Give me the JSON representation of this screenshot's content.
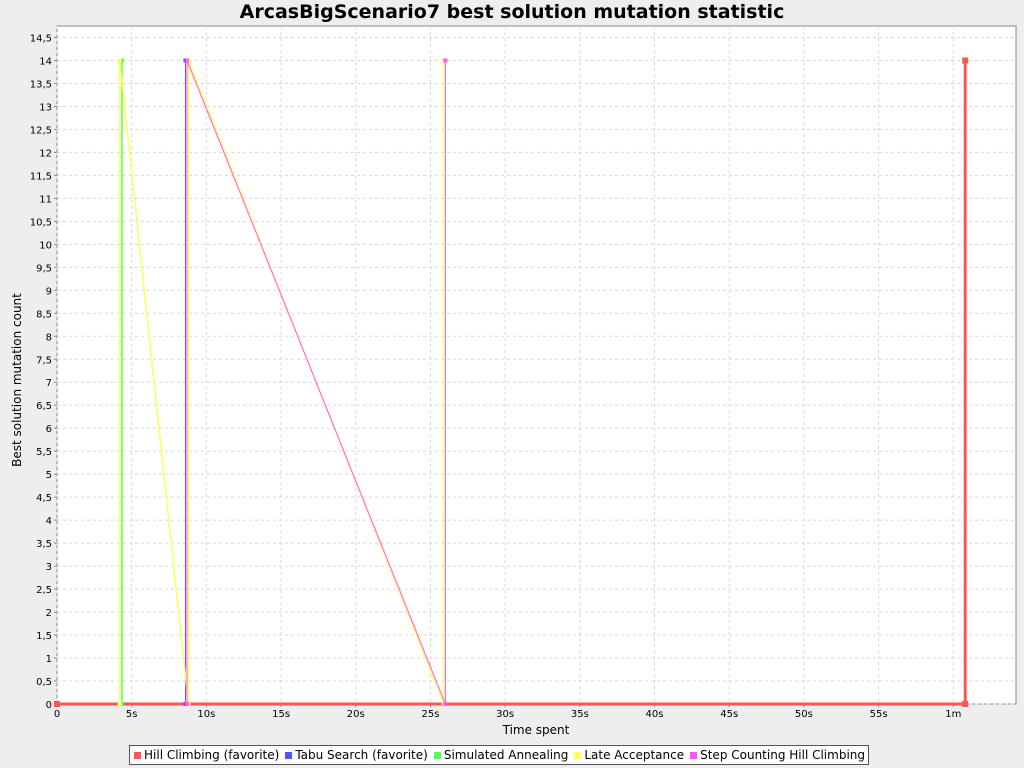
{
  "chart_data": {
    "type": "line",
    "title": "ArcasBigScenario7 best solution mutation statistic",
    "xlabel": "Time spent",
    "ylabel": "Best solution mutation count",
    "xlim": [
      0,
      64.2
    ],
    "ylim": [
      0,
      14.75
    ],
    "x_ticks": [
      {
        "value": 0,
        "label": "0"
      },
      {
        "value": 5,
        "label": "5s"
      },
      {
        "value": 10,
        "label": "10s"
      },
      {
        "value": 15,
        "label": "15s"
      },
      {
        "value": 20,
        "label": "20s"
      },
      {
        "value": 25,
        "label": "25s"
      },
      {
        "value": 30,
        "label": "30s"
      },
      {
        "value": 35,
        "label": "35s"
      },
      {
        "value": 40,
        "label": "40s"
      },
      {
        "value": 45,
        "label": "45s"
      },
      {
        "value": 50,
        "label": "50s"
      },
      {
        "value": 55,
        "label": "55s"
      },
      {
        "value": 60,
        "label": "1m"
      }
    ],
    "y_ticks": [
      {
        "value": 0,
        "label": "0"
      },
      {
        "value": 0.5,
        "label": "0,5"
      },
      {
        "value": 1,
        "label": "1"
      },
      {
        "value": 1.5,
        "label": "1,5"
      },
      {
        "value": 2,
        "label": "2"
      },
      {
        "value": 2.5,
        "label": "2,5"
      },
      {
        "value": 3,
        "label": "3"
      },
      {
        "value": 3.5,
        "label": "3,5"
      },
      {
        "value": 4,
        "label": "4"
      },
      {
        "value": 4.5,
        "label": "4,5"
      },
      {
        "value": 5,
        "label": "5"
      },
      {
        "value": 5.5,
        "label": "5,5"
      },
      {
        "value": 6,
        "label": "6"
      },
      {
        "value": 6.5,
        "label": "6,5"
      },
      {
        "value": 7,
        "label": "7"
      },
      {
        "value": 7.5,
        "label": "7,5"
      },
      {
        "value": 8,
        "label": "8"
      },
      {
        "value": 8.5,
        "label": "8,5"
      },
      {
        "value": 9,
        "label": "9"
      },
      {
        "value": 9.5,
        "label": "9,5"
      },
      {
        "value": 10,
        "label": "10"
      },
      {
        "value": 10.5,
        "label": "10,5"
      },
      {
        "value": 11,
        "label": "11"
      },
      {
        "value": 11.5,
        "label": "11,5"
      },
      {
        "value": 12,
        "label": "12"
      },
      {
        "value": 12.5,
        "label": "12,5"
      },
      {
        "value": 13,
        "label": "13"
      },
      {
        "value": 13.5,
        "label": "13,5"
      },
      {
        "value": 14,
        "label": "14"
      },
      {
        "value": 14.5,
        "label": "14,5"
      }
    ],
    "grid": true,
    "legend_position": "bottom",
    "series": [
      {
        "name": "Hill Climbing (favorite)",
        "color": "#ff5555",
        "width": 3,
        "points": [
          [
            0,
            0
          ],
          [
            60.8,
            0
          ],
          [
            60.8,
            14
          ]
        ]
      },
      {
        "name": "Tabu Search (favorite)",
        "color": "#5555ff",
        "width": 1,
        "points": [
          [
            8.6,
            0
          ],
          [
            8.6,
            14
          ]
        ]
      },
      {
        "name": "Simulated Annealing",
        "color": "#55ff55",
        "width": 1.5,
        "points": [
          [
            4.35,
            0
          ],
          [
            4.35,
            14
          ]
        ]
      },
      {
        "name": "Late Acceptance",
        "color": "#ffff55",
        "width": 1.5,
        "points": [
          [
            4.2,
            0
          ],
          [
            4.2,
            14
          ],
          [
            8.8,
            0
          ],
          [
            8.8,
            14
          ],
          [
            25.9,
            0
          ],
          [
            25.9,
            14
          ]
        ]
      },
      {
        "name": "Step Counting Hill Climbing",
        "color": "#ff55ff",
        "width": 1,
        "points": [
          [
            8.7,
            0
          ],
          [
            8.7,
            14
          ],
          [
            26.0,
            0
          ],
          [
            26.0,
            14
          ]
        ]
      }
    ]
  }
}
